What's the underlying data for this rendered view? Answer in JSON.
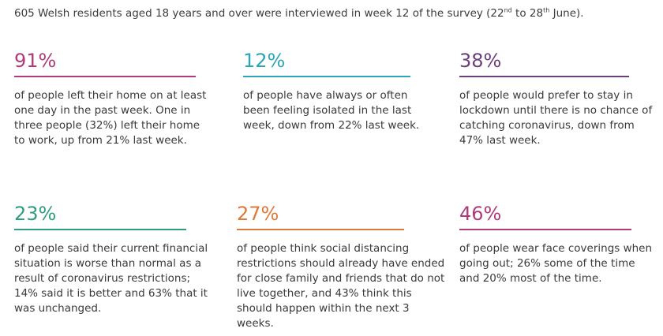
{
  "intro": {
    "before_sup1": "605 Welsh residents aged 18 years and over were interviewed in week 12 of the survey (22",
    "sup1": "nd",
    "between": " to 28",
    "sup2": "th",
    "after": " June)."
  },
  "stats": [
    {
      "value": "91%",
      "color": "#b03a7a",
      "text": "of people left their home on at least one day in the past week. One in three people (32%) left their home to work, up from 21% last week."
    },
    {
      "value": "12%",
      "color": "#2aa6b8",
      "text": "of people have always or often been feeling isolated in the last week, down from 22% last week."
    },
    {
      "value": "38%",
      "color": "#6b3f7a",
      "text": "of people would prefer to stay in lockdown until there is no chance of catching coronavirus, down from 47% last week."
    },
    {
      "value": "23%",
      "color": "#2e9e80",
      "text": "of people said their current financial situation is worse than normal as a result of coronavirus restrictions; 14% said it is better and 63% that it was unchanged."
    },
    {
      "value": "27%",
      "color": "#e0783a",
      "text": "of people think social distancing restrictions should already have ended for close family and friends that do not live together, and 43% think this should happen within the next 3 weeks."
    },
    {
      "value": "46%",
      "color": "#b03a7a",
      "text": "of people wear face coverings when going out; 26% some of the time and 20% most of the time."
    }
  ]
}
